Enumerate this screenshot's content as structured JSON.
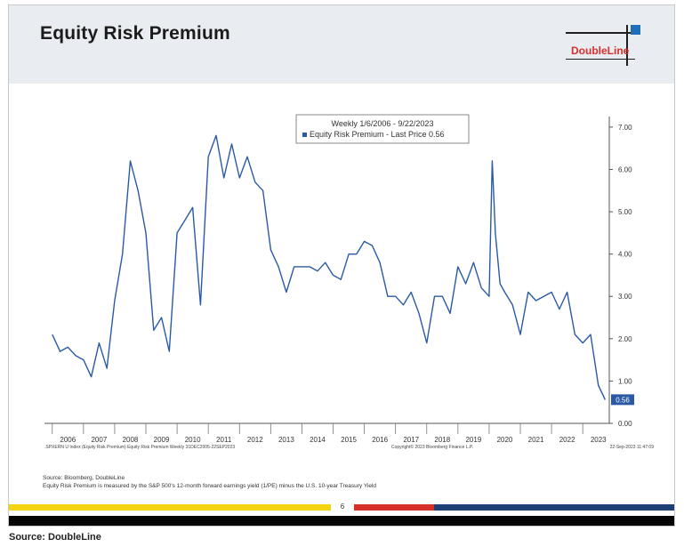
{
  "slide": {
    "title": "Equity Risk Premium",
    "logo_text": "DoubleLine",
    "page_number": "6",
    "notes": [
      "Source: Bloomberg, DoubleLine",
      "Equity Risk Premium is measured by the S&P 500's 12-month forward earnings yield (1/PE) minus the U.S. 10-year Treasury Yield"
    ],
    "colors": {
      "header_bg": "#e9ecf1",
      "line": "#2a5aa6",
      "logo_red": "#d6302a",
      "logo_blue": "#1f6fb8",
      "bar_yellow": "#f5d315",
      "bar_red": "#d6302a",
      "bar_blue": "#1d3f75"
    }
  },
  "caption": "Source: DoubleLine",
  "chart_data": {
    "type": "line",
    "legend_title": "Weekly 1/6/2006 - 9/22/2023",
    "series": [
      {
        "name": "Equity Risk Premium - Last Price 0.56",
        "x": [
          2006.0,
          2006.25,
          2006.5,
          2006.75,
          2007.0,
          2007.25,
          2007.5,
          2007.75,
          2008.0,
          2008.25,
          2008.5,
          2008.75,
          2009.0,
          2009.25,
          2009.5,
          2009.75,
          2010.0,
          2010.25,
          2010.5,
          2010.75,
          2011.0,
          2011.25,
          2011.5,
          2011.75,
          2012.0,
          2012.25,
          2012.5,
          2012.75,
          2013.0,
          2013.25,
          2013.5,
          2013.75,
          2014.0,
          2014.25,
          2014.5,
          2014.75,
          2015.0,
          2015.25,
          2015.5,
          2015.75,
          2016.0,
          2016.25,
          2016.5,
          2016.75,
          2017.0,
          2017.25,
          2017.5,
          2017.75,
          2018.0,
          2018.25,
          2018.5,
          2018.75,
          2019.0,
          2019.25,
          2019.5,
          2019.75,
          2020.0,
          2020.1,
          2020.2,
          2020.35,
          2020.5,
          2020.75,
          2021.0,
          2021.25,
          2021.5,
          2021.75,
          2022.0,
          2022.25,
          2022.5,
          2022.75,
          2023.0,
          2023.25,
          2023.5,
          2023.72
        ],
        "values": [
          2.1,
          1.7,
          1.8,
          1.6,
          1.5,
          1.1,
          1.9,
          1.3,
          2.9,
          4.0,
          6.2,
          5.5,
          4.5,
          2.2,
          2.5,
          1.7,
          4.5,
          4.8,
          5.1,
          2.8,
          6.3,
          6.8,
          5.8,
          6.6,
          5.8,
          6.3,
          5.7,
          5.5,
          4.1,
          3.7,
          3.1,
          3.7,
          3.7,
          3.7,
          3.6,
          3.8,
          3.5,
          3.4,
          4.0,
          4.0,
          4.3,
          4.2,
          3.8,
          3.0,
          3.0,
          2.8,
          3.1,
          2.6,
          1.9,
          3.0,
          3.0,
          2.6,
          3.7,
          3.3,
          3.8,
          3.2,
          3.0,
          6.2,
          4.5,
          3.3,
          3.1,
          2.8,
          2.1,
          3.1,
          2.9,
          3.0,
          3.1,
          2.7,
          3.1,
          2.1,
          1.9,
          2.1,
          0.9,
          0.56
        ]
      }
    ],
    "last_value_label": "0.56",
    "x_ticks": [
      "2006",
      "2007",
      "2008",
      "2009",
      "2010",
      "2011",
      "2012",
      "2013",
      "2014",
      "2015",
      "2016",
      "2017",
      "2018",
      "2019",
      "2020",
      "2021",
      "2022",
      "2023"
    ],
    "xlim": [
      2005.75,
      2023.85
    ],
    "ylim": [
      0,
      7.25
    ],
    "y_ticks": [
      "0.00",
      "1.00",
      "2.00",
      "3.00",
      "4.00",
      "5.00",
      "6.00",
      "7.00"
    ],
    "footer_left": ".SPXERN U Index (Equity Risk Premium) Equity Risk Premium   Weekly 31DEC2005-22SEP2023",
    "footer_center": "Copyright© 2023 Bloomberg Finance L.P.",
    "footer_right": "22-Sep-2023 11:47:09",
    "grid": false
  }
}
